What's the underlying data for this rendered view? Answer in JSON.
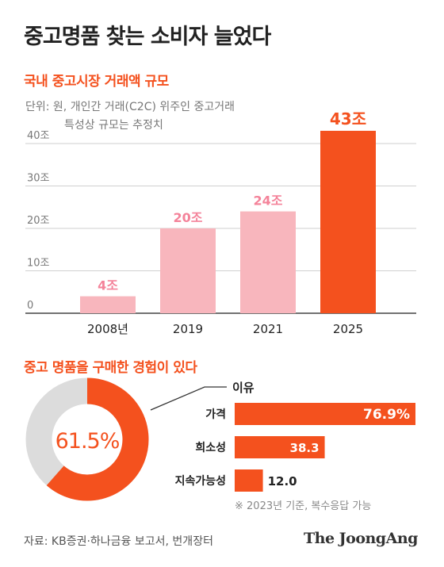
{
  "title": "중고명품 찾는 소비자 늘었다",
  "colors": {
    "accent": "#f4511e",
    "pink": "#f8b6bd",
    "ring_bg": "#dcdcdc"
  },
  "chart_data": [
    {
      "type": "bar",
      "title": "국내 중고시장 거래액 규모",
      "unit_note": [
        "단위: 원, 개인간 거래(C2C) 위주인 중고거래",
        "특성상 규모는 추정치"
      ],
      "categories": [
        "2008년",
        "2019",
        "2021",
        "2025"
      ],
      "values": [
        4,
        20,
        24,
        43
      ],
      "value_labels": [
        "4조",
        "20조",
        "24조",
        "43조"
      ],
      "bar_colors": [
        "#f8b6bd",
        "#f8b6bd",
        "#f8b6bd",
        "#f4511e"
      ],
      "label_colors": [
        "#f4839a",
        "#f4839a",
        "#f4839a",
        "#f4511e"
      ],
      "ylim": [
        0,
        40
      ],
      "yticks": [
        0,
        10,
        20,
        30,
        40
      ],
      "ytick_labels": [
        "0",
        "10조",
        "20조",
        "30조",
        "40조"
      ],
      "grid": true
    },
    {
      "type": "pie",
      "title": "중고 명품을 구매한 경험이 있다",
      "value": 61.5,
      "label": "61.5%"
    },
    {
      "type": "bar",
      "orientation": "horizontal",
      "header": "이유",
      "categories": [
        "가격",
        "희소성",
        "지속가능성"
      ],
      "values": [
        76.9,
        38.3,
        12.0
      ],
      "value_labels": [
        "76.9%",
        "38.3",
        "12.0"
      ],
      "note": "※ 2023년 기준, 복수응답 가능"
    }
  ],
  "source": "자료: KB증권·하나금융 보고서, 번개장터",
  "brand": "The JoongAng"
}
